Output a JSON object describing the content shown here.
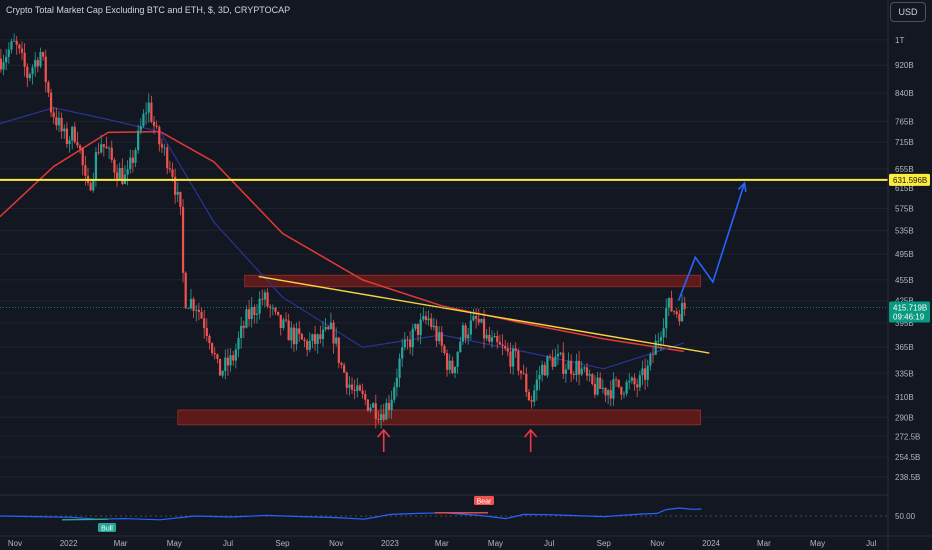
{
  "header": {
    "title": "Crypto Total Market Cap Excluding BTC and ETH, $, 3D, CRYPTOCAP",
    "currency": "USD"
  },
  "price_axis": {
    "ticks": [
      "1T",
      "920B",
      "840B",
      "765B",
      "715B",
      "655B",
      "615B",
      "575B",
      "535B",
      "495B",
      "455B",
      "425B",
      "395B",
      "365B",
      "335B",
      "310B",
      "290B",
      "272.5B",
      "254.5B",
      "238.5B"
    ],
    "line_tag": "631.596B",
    "last_price": "415.719B",
    "countdown": "09:46:19"
  },
  "time_axis": {
    "ticks": [
      "Nov",
      "2022",
      "Mar",
      "May",
      "Jul",
      "Sep",
      "Nov",
      "2023",
      "Mar",
      "May",
      "Jul",
      "Sep",
      "Nov",
      "2024",
      "Mar",
      "May",
      "Jul"
    ]
  },
  "indicator": {
    "level_label": "50.00",
    "bull_label": "Bull",
    "bear_label": "Bear"
  },
  "colors": {
    "background": "#131722",
    "up_candle": "#26a69a",
    "down_candle": "#ef5350",
    "resistance_line": "#ffeb3b",
    "trendline": "#f5d53d",
    "ma_long": "#e53935",
    "ma_short": "#283593",
    "projection": "#2962ff",
    "zone": "#5c1a1a",
    "arrow": "#f23645",
    "last_price_bg": "#089981"
  },
  "chart_data": {
    "type": "candlestick",
    "scale": "log",
    "x_range": [
      "2021-10-15",
      "2024-07-20"
    ],
    "y_range": [
      "230B",
      "1.06T"
    ],
    "horizontal_line": {
      "value": 631.596,
      "unit": "B"
    },
    "zones": [
      {
        "from": "2022-07-20",
        "to": "2023-12-20",
        "low": 445,
        "high": 462
      },
      {
        "from": "2022-05-05",
        "to": "2023-12-20",
        "low": 283,
        "high": 297
      }
    ],
    "trendline": {
      "from": [
        "2022-08-05",
        460
      ],
      "to": [
        "2023-12-30",
        358
      ]
    },
    "projection_path": [
      [
        "2023-11-25",
        425
      ],
      [
        "2023-12-14",
        490
      ],
      [
        "2024-01-03",
        452
      ],
      [
        "2024-02-08",
        625
      ]
    ],
    "markers": [
      {
        "type": "up-arrow",
        "date": "2022-12-25"
      },
      {
        "type": "up-arrow",
        "date": "2023-06-10"
      }
    ],
    "close_path": [
      [
        "2021-10-16",
        940
      ],
      [
        "2021-11-01",
        985
      ],
      [
        "2021-11-15",
        890
      ],
      [
        "2021-11-30",
        960
      ],
      [
        "2021-12-12",
        800
      ],
      [
        "2021-12-28",
        720
      ],
      [
        "2022-01-10",
        740
      ],
      [
        "2022-01-22",
        600
      ],
      [
        "2022-02-06",
        720
      ],
      [
        "2022-02-22",
        660
      ],
      [
        "2022-03-08",
        630
      ],
      [
        "2022-03-22",
        730
      ],
      [
        "2022-04-01",
        815
      ],
      [
        "2022-04-12",
        720
      ],
      [
        "2022-04-28",
        660
      ],
      [
        "2022-05-08",
        560
      ],
      [
        "2022-05-12",
        430
      ],
      [
        "2022-05-26",
        420
      ],
      [
        "2022-06-10",
        380
      ],
      [
        "2022-06-20",
        335
      ],
      [
        "2022-07-06",
        350
      ],
      [
        "2022-07-22",
        400
      ],
      [
        "2022-08-10",
        430
      ],
      [
        "2022-08-26",
        395
      ],
      [
        "2022-09-12",
        380
      ],
      [
        "2022-09-28",
        368
      ],
      [
        "2022-10-10",
        372
      ],
      [
        "2022-10-28",
        385
      ],
      [
        "2022-11-06",
        345
      ],
      [
        "2022-11-20",
        315
      ],
      [
        "2022-12-06",
        305
      ],
      [
        "2022-12-22",
        295
      ],
      [
        "2023-01-01",
        305
      ],
      [
        "2023-01-14",
        355
      ],
      [
        "2023-01-30",
        385
      ],
      [
        "2023-02-14",
        400
      ],
      [
        "2023-02-26",
        372
      ],
      [
        "2023-03-12",
        335
      ],
      [
        "2023-03-24",
        382
      ],
      [
        "2023-04-10",
        398
      ],
      [
        "2023-04-22",
        372
      ],
      [
        "2023-05-08",
        362
      ],
      [
        "2023-05-26",
        348
      ],
      [
        "2023-06-10",
        305
      ],
      [
        "2023-06-22",
        340
      ],
      [
        "2023-07-06",
        352
      ],
      [
        "2023-07-18",
        345
      ],
      [
        "2023-08-04",
        342
      ],
      [
        "2023-08-18",
        320
      ],
      [
        "2023-09-04",
        318
      ],
      [
        "2023-09-22",
        322
      ],
      [
        "2023-10-10",
        322
      ],
      [
        "2023-10-22",
        340
      ],
      [
        "2023-11-02",
        378
      ],
      [
        "2023-11-12",
        418
      ],
      [
        "2023-11-24",
        410
      ],
      [
        "2023-12-03",
        416
      ]
    ],
    "moving_averages": [
      {
        "color": "#e53935",
        "path": [
          [
            "2021-10-15",
            560
          ],
          [
            "2021-12-15",
            660
          ],
          [
            "2022-02-15",
            738
          ],
          [
            "2022-04-15",
            740
          ],
          [
            "2022-06-15",
            670
          ],
          [
            "2022-09-01",
            530
          ],
          [
            "2022-12-01",
            455
          ],
          [
            "2023-03-01",
            418
          ],
          [
            "2023-06-01",
            395
          ],
          [
            "2023-09-01",
            375
          ],
          [
            "2023-12-01",
            360
          ]
        ]
      },
      {
        "color": "#283593",
        "path": [
          [
            "2021-10-15",
            760
          ],
          [
            "2021-12-15",
            800
          ],
          [
            "2022-02-15",
            770
          ],
          [
            "2022-04-15",
            740
          ],
          [
            "2022-06-15",
            550
          ],
          [
            "2022-09-01",
            430
          ],
          [
            "2022-12-01",
            365
          ],
          [
            "2023-03-01",
            380
          ],
          [
            "2023-06-01",
            360
          ],
          [
            "2023-09-01",
            340
          ],
          [
            "2023-12-01",
            370
          ]
        ]
      }
    ],
    "oscillator": {
      "level": 50,
      "range": [
        0,
        100
      ],
      "path": [
        [
          0,
          50
        ],
        [
          0.04,
          48
        ],
        [
          0.08,
          46
        ],
        [
          0.11,
          40
        ],
        [
          0.14,
          42
        ],
        [
          0.18,
          38
        ],
        [
          0.22,
          50
        ],
        [
          0.26,
          47
        ],
        [
          0.3,
          52
        ],
        [
          0.34,
          48
        ],
        [
          0.38,
          45
        ],
        [
          0.41,
          40
        ],
        [
          0.44,
          55
        ],
        [
          0.47,
          58
        ],
        [
          0.5,
          60
        ],
        [
          0.52,
          56
        ],
        [
          0.54,
          52
        ],
        [
          0.57,
          42
        ],
        [
          0.59,
          55
        ],
        [
          0.62,
          54
        ],
        [
          0.64,
          52
        ],
        [
          0.66,
          50
        ],
        [
          0.68,
          48
        ],
        [
          0.7,
          52
        ],
        [
          0.72,
          56
        ],
        [
          0.74,
          58
        ],
        [
          0.75,
          70
        ],
        [
          0.765,
          75
        ],
        [
          0.78,
          71
        ],
        [
          0.79,
          72
        ]
      ]
    }
  }
}
